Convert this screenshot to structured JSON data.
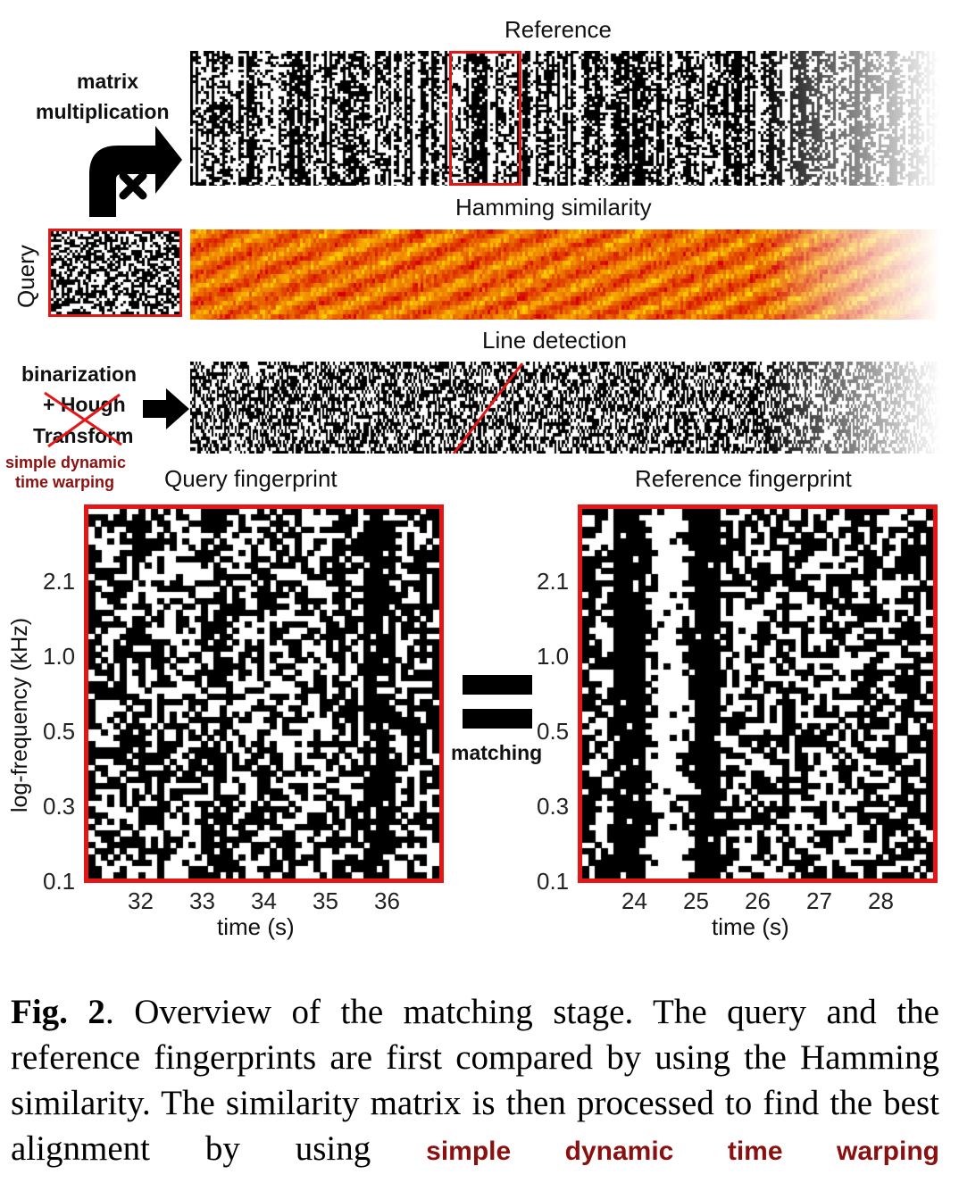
{
  "labels": {
    "reference": "Reference",
    "hamming": "Hamming similarity",
    "line_detection": "Line detection",
    "query": "Query",
    "matrix_line1": "matrix",
    "matrix_line2": "multiplication",
    "binarization": "binarization",
    "hough": "+ Hough",
    "transform": "Transform",
    "dtw_line1": "simple dynamic",
    "dtw_line2": "time warping",
    "query_fp": "Query fingerprint",
    "reference_fp": "Reference fingerprint",
    "matching": "matching",
    "ylabel": "log-frequency (kHz)",
    "xlabel_left": "time (s)",
    "xlabel_right": "time (s)"
  },
  "yticks": [
    "2.1",
    "1.0",
    "0.5",
    "0.3",
    "0.1"
  ],
  "xticks_query": [
    "32",
    "33",
    "34",
    "35",
    "36"
  ],
  "xticks_reference": [
    "24",
    "25",
    "26",
    "27",
    "28"
  ],
  "caption": {
    "fig": "Fig. 2",
    "text": ". Overview of the matching stage. The query and the reference fingerprints are first compared by using the Hamming similarity. The similarity matrix is then processed to find the best alignment by using",
    "highlight": "simple dynamic time warping"
  },
  "colors": {
    "accent_red": "#e51616",
    "annotation_dark_red": "#8b1010",
    "heat_low": "#d40000",
    "heat_high": "#ffd200"
  }
}
